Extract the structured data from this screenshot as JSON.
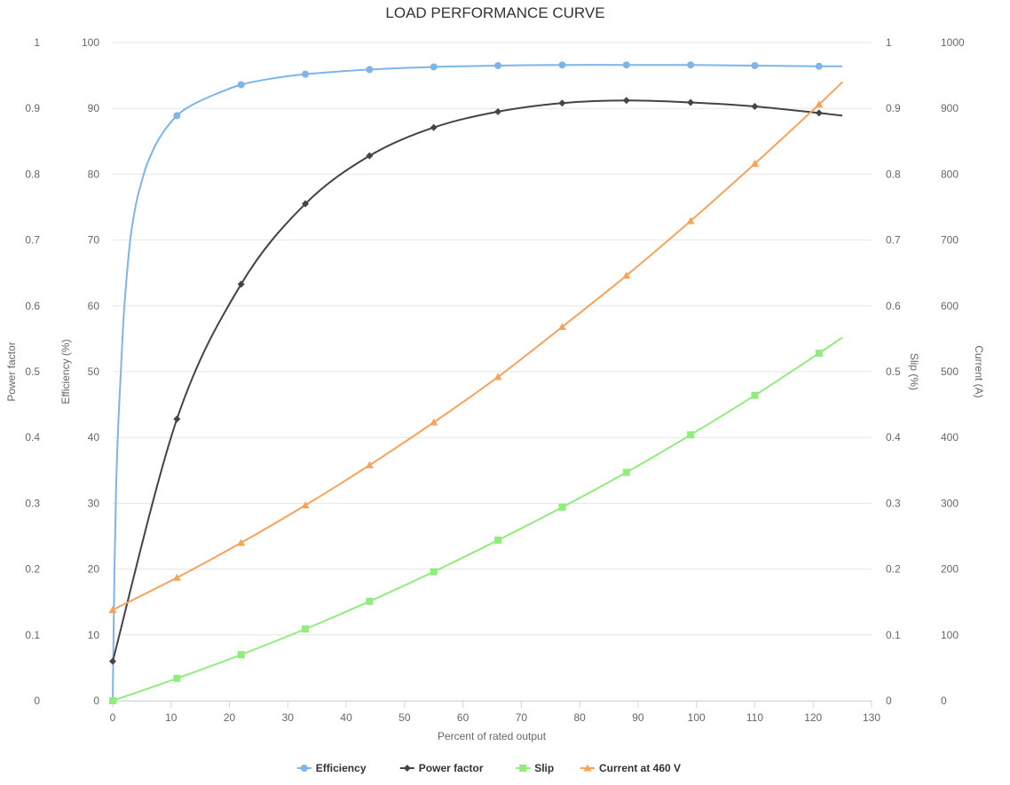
{
  "chart_data": {
    "type": "line",
    "title": "LOAD PERFORMANCE CURVE",
    "xlabel": "Percent of rated output",
    "xlim": [
      0,
      130
    ],
    "xticks": [
      "0",
      "10",
      "20",
      "30",
      "40",
      "50",
      "60",
      "70",
      "80",
      "90",
      "100",
      "110",
      "120",
      "130"
    ],
    "grid": true,
    "legend_position": "bottom-center",
    "axes": {
      "power_factor": {
        "title": "Power factor",
        "side": "left",
        "range": [
          0,
          1
        ],
        "ticks": [
          "0",
          "0.1",
          "0.2",
          "0.3",
          "0.4",
          "0.5",
          "0.6",
          "0.7",
          "0.8",
          "0.9",
          "1"
        ]
      },
      "efficiency": {
        "title": "Efficiency (%)",
        "side": "left",
        "range": [
          0,
          100
        ],
        "ticks": [
          "0",
          "10",
          "20",
          "30",
          "40",
          "50",
          "60",
          "70",
          "80",
          "90",
          "100"
        ]
      },
      "slip": {
        "title": "Slip (%)",
        "side": "right",
        "range": [
          0,
          1
        ],
        "ticks": [
          "0",
          "0.1",
          "0.2",
          "0.3",
          "0.4",
          "0.5",
          "0.6",
          "0.7",
          "0.8",
          "0.9",
          "1"
        ]
      },
      "current": {
        "title": "Current (A)",
        "side": "right",
        "range": [
          0,
          1000
        ],
        "ticks": [
          "0",
          "100",
          "200",
          "300",
          "400",
          "500",
          "600",
          "700",
          "800",
          "900",
          "1000"
        ]
      }
    },
    "series": [
      {
        "name": "Efficiency",
        "axis": "efficiency",
        "color": "#7cb5ec",
        "marker": "circle",
        "x": [
          0,
          11,
          22,
          33,
          44,
          55,
          66,
          77,
          88,
          99,
          110,
          121
        ],
        "y": [
          0,
          88.9,
          93.6,
          95.2,
          95.9,
          96.3,
          96.5,
          96.6,
          96.6,
          96.6,
          96.5,
          96.4
        ],
        "curve_x": [
          0,
          0.3,
          0.6,
          1,
          1.5,
          2,
          3,
          4,
          5,
          6,
          8,
          11,
          14,
          18,
          22,
          27,
          33,
          44,
          55,
          66,
          77,
          88,
          99,
          110,
          121,
          125
        ],
        "curve_y": [
          0,
          20,
          33,
          43,
          52,
          60,
          70,
          75.5,
          79,
          81.8,
          85.5,
          88.9,
          90.7,
          92.3,
          93.6,
          94.5,
          95.2,
          95.9,
          96.3,
          96.5,
          96.6,
          96.6,
          96.6,
          96.5,
          96.4,
          96.4
        ]
      },
      {
        "name": "Power factor",
        "axis": "power_factor",
        "color": "#434348",
        "marker": "diamond",
        "x": [
          0,
          11,
          22,
          33,
          44,
          55,
          66,
          77,
          88,
          99,
          110,
          121
        ],
        "y": [
          0.06,
          0.428,
          0.633,
          0.755,
          0.828,
          0.871,
          0.895,
          0.908,
          0.912,
          0.909,
          0.903,
          0.893
        ],
        "curve_x": [
          0,
          11,
          22,
          33,
          44,
          55,
          66,
          77,
          88,
          99,
          110,
          121,
          125
        ],
        "curve_y": [
          0.06,
          0.428,
          0.633,
          0.755,
          0.828,
          0.871,
          0.895,
          0.908,
          0.912,
          0.909,
          0.903,
          0.893,
          0.889
        ]
      },
      {
        "name": "Slip",
        "axis": "slip",
        "color": "#90ed7d",
        "marker": "square",
        "x": [
          0,
          11,
          22,
          33,
          44,
          55,
          66,
          77,
          88,
          99,
          110,
          121
        ],
        "y": [
          0.0,
          0.034,
          0.07,
          0.109,
          0.151,
          0.196,
          0.244,
          0.294,
          0.347,
          0.404,
          0.464,
          0.528
        ],
        "curve_x": [
          0,
          11,
          22,
          33,
          44,
          55,
          66,
          77,
          88,
          99,
          110,
          121,
          125
        ],
        "curve_y": [
          0.0,
          0.034,
          0.07,
          0.109,
          0.151,
          0.196,
          0.244,
          0.294,
          0.347,
          0.404,
          0.464,
          0.528,
          0.552
        ]
      },
      {
        "name": "Current at 460 V",
        "axis": "current",
        "color": "#f7a35c",
        "marker": "triangle",
        "x": [
          0,
          11,
          22,
          33,
          44,
          55,
          66,
          77,
          88,
          99,
          110,
          121
        ],
        "y": [
          138,
          187,
          240,
          297,
          358,
          423,
          492,
          568,
          646,
          729,
          816,
          906
        ],
        "curve_x": [
          0,
          11,
          22,
          33,
          44,
          55,
          66,
          77,
          88,
          99,
          110,
          121,
          125
        ],
        "curve_y": [
          138,
          187,
          240,
          297,
          358,
          423,
          492,
          568,
          646,
          729,
          816,
          906,
          940
        ]
      }
    ]
  }
}
